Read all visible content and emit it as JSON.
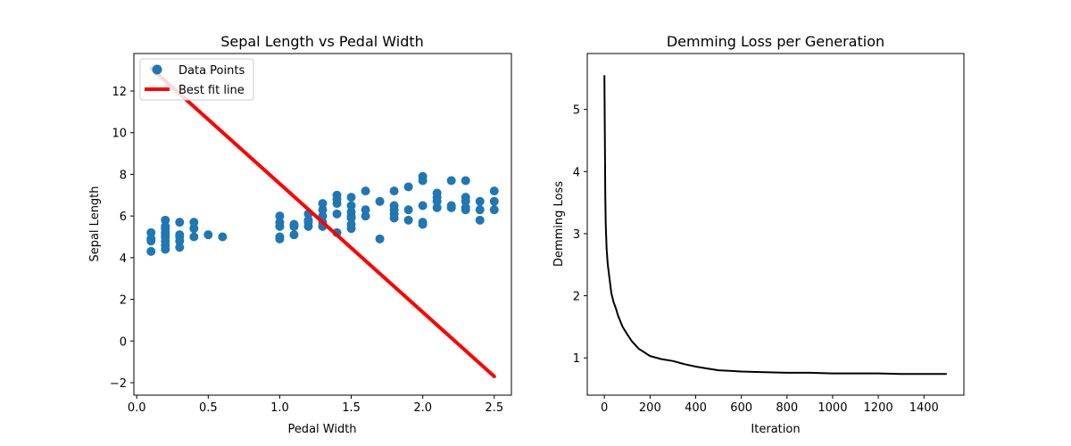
{
  "chart_data": [
    {
      "type": "scatter",
      "title": "Sepal Length vs Pedal Width",
      "xlabel": "Pedal Width",
      "ylabel": "Sepal Length",
      "xlim": [
        -0.02,
        2.62
      ],
      "ylim": [
        -2.6,
        13.8
      ],
      "xticks": [
        0.0,
        0.5,
        1.0,
        1.5,
        2.0,
        2.5
      ],
      "xtick_labels": [
        "0.0",
        "0.5",
        "1.0",
        "1.5",
        "2.0",
        "2.5"
      ],
      "yticks": [
        -2,
        0,
        2,
        4,
        6,
        8,
        10,
        12
      ],
      "ytick_labels": [
        "−2",
        "0",
        "2",
        "4",
        "6",
        "8",
        "10",
        "12"
      ],
      "legend": {
        "placement": "top-left",
        "entries": [
          "Data Points",
          "Best fit line"
        ]
      },
      "colors": {
        "points": "#1f77b4",
        "line": "#ff0000"
      },
      "series": [
        {
          "name": "Data Points",
          "kind": "scatter",
          "points": [
            [
              0.1,
              4.3
            ],
            [
              0.1,
              4.8
            ],
            [
              0.1,
              4.9
            ],
            [
              0.1,
              5.2
            ],
            [
              0.2,
              4.4
            ],
            [
              0.2,
              4.6
            ],
            [
              0.2,
              4.8
            ],
            [
              0.2,
              5.0
            ],
            [
              0.2,
              5.1
            ],
            [
              0.2,
              5.2
            ],
            [
              0.2,
              5.4
            ],
            [
              0.2,
              5.5
            ],
            [
              0.2,
              5.8
            ],
            [
              0.3,
              4.5
            ],
            [
              0.3,
              4.8
            ],
            [
              0.3,
              5.0
            ],
            [
              0.3,
              5.1
            ],
            [
              0.3,
              5.7
            ],
            [
              0.4,
              5.0
            ],
            [
              0.4,
              5.4
            ],
            [
              0.4,
              5.7
            ],
            [
              0.5,
              5.1
            ],
            [
              0.6,
              5.0
            ],
            [
              1.0,
              4.9
            ],
            [
              1.0,
              5.0
            ],
            [
              1.0,
              5.5
            ],
            [
              1.0,
              5.7
            ],
            [
              1.0,
              6.0
            ],
            [
              1.1,
              5.1
            ],
            [
              1.1,
              5.5
            ],
            [
              1.1,
              5.6
            ],
            [
              1.2,
              5.5
            ],
            [
              1.2,
              5.7
            ],
            [
              1.2,
              5.8
            ],
            [
              1.2,
              6.1
            ],
            [
              1.3,
              5.5
            ],
            [
              1.3,
              5.7
            ],
            [
              1.3,
              6.0
            ],
            [
              1.3,
              6.3
            ],
            [
              1.3,
              6.6
            ],
            [
              1.4,
              5.2
            ],
            [
              1.4,
              6.1
            ],
            [
              1.4,
              6.6
            ],
            [
              1.4,
              6.8
            ],
            [
              1.4,
              7.0
            ],
            [
              1.5,
              5.4
            ],
            [
              1.5,
              5.6
            ],
            [
              1.5,
              5.9
            ],
            [
              1.5,
              6.0
            ],
            [
              1.5,
              6.2
            ],
            [
              1.5,
              6.5
            ],
            [
              1.5,
              6.9
            ],
            [
              1.6,
              6.0
            ],
            [
              1.6,
              6.3
            ],
            [
              1.6,
              7.2
            ],
            [
              1.7,
              4.9
            ],
            [
              1.7,
              6.7
            ],
            [
              1.8,
              5.9
            ],
            [
              1.8,
              6.1
            ],
            [
              1.8,
              6.3
            ],
            [
              1.8,
              6.5
            ],
            [
              1.8,
              7.2
            ],
            [
              1.9,
              5.8
            ],
            [
              1.9,
              6.3
            ],
            [
              1.9,
              7.4
            ],
            [
              2.0,
              5.6
            ],
            [
              2.0,
              5.7
            ],
            [
              2.0,
              6.5
            ],
            [
              2.0,
              7.7
            ],
            [
              2.0,
              7.9
            ],
            [
              2.1,
              6.4
            ],
            [
              2.1,
              6.7
            ],
            [
              2.1,
              6.9
            ],
            [
              2.1,
              7.1
            ],
            [
              2.2,
              6.4
            ],
            [
              2.2,
              6.5
            ],
            [
              2.2,
              7.7
            ],
            [
              2.3,
              6.3
            ],
            [
              2.3,
              6.4
            ],
            [
              2.3,
              6.7
            ],
            [
              2.3,
              6.9
            ],
            [
              2.3,
              7.7
            ],
            [
              2.4,
              5.8
            ],
            [
              2.4,
              6.3
            ],
            [
              2.4,
              6.7
            ],
            [
              2.5,
              6.3
            ],
            [
              2.5,
              6.7
            ],
            [
              2.5,
              7.2
            ]
          ]
        },
        {
          "name": "Best fit line",
          "kind": "line",
          "x": [
            0.1,
            2.5
          ],
          "y": [
            13.1,
            -1.7
          ]
        }
      ]
    },
    {
      "type": "line",
      "title": "Demming Loss per Generation",
      "xlabel": "Iteration",
      "ylabel": "Demming Loss",
      "xlim": [
        -75,
        1575
      ],
      "ylim": [
        0.4,
        5.9
      ],
      "xticks": [
        0,
        200,
        400,
        600,
        800,
        1000,
        1200,
        1400
      ],
      "xtick_labels": [
        "0",
        "200",
        "400",
        "600",
        "800",
        "1000",
        "1200",
        "1400"
      ],
      "yticks": [
        1,
        2,
        3,
        4,
        5
      ],
      "ytick_labels": [
        "1",
        "2",
        "3",
        "4",
        "5"
      ],
      "colors": {
        "line": "#000000"
      },
      "series": [
        {
          "kind": "line",
          "x": [
            0,
            2,
            4,
            6,
            8,
            10,
            15,
            20,
            30,
            40,
            50,
            60,
            80,
            100,
            120,
            150,
            200,
            250,
            300,
            350,
            400,
            450,
            500,
            550,
            600,
            700,
            800,
            900,
            1000,
            1100,
            1200,
            1300,
            1400,
            1500
          ],
          "y": [
            5.55,
            4.6,
            3.6,
            3.15,
            2.95,
            2.75,
            2.5,
            2.35,
            2.05,
            1.9,
            1.8,
            1.68,
            1.5,
            1.38,
            1.27,
            1.15,
            1.03,
            0.98,
            0.95,
            0.9,
            0.86,
            0.83,
            0.8,
            0.79,
            0.78,
            0.77,
            0.76,
            0.76,
            0.75,
            0.75,
            0.75,
            0.74,
            0.74,
            0.74
          ]
        }
      ]
    }
  ]
}
